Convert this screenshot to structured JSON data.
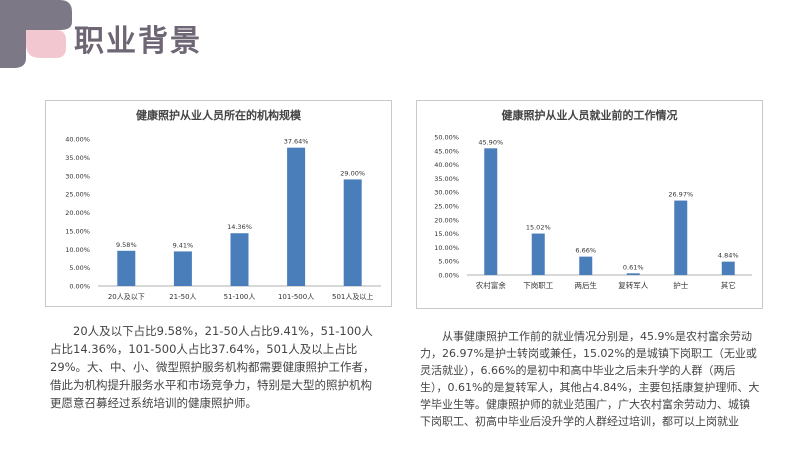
{
  "header": {
    "title": "职业背景"
  },
  "colors": {
    "bar": "#4a7ebb",
    "title": "#6e6675",
    "logo_dark": "#7d7885",
    "logo_light": "#f2c7d0"
  },
  "chart_data": [
    {
      "type": "bar",
      "title": "健康照护从业人员所在的机构规模",
      "categories": [
        "20人及以下",
        "21-50人",
        "51-100人",
        "101-500人",
        "501人及以上"
      ],
      "values": [
        9.58,
        9.41,
        14.36,
        37.64,
        29.0
      ],
      "value_labels": [
        "9.58%",
        "9.41%",
        "14.36%",
        "37.64%",
        "29.00%"
      ],
      "y_ticks": [
        "0.00%",
        "5.00%",
        "10.00%",
        "15.00%",
        "20.00%",
        "25.00%",
        "30.00%",
        "35.00%",
        "40.00%"
      ],
      "ylim": [
        0,
        40
      ],
      "grid": false
    },
    {
      "type": "bar",
      "title": "健康照护从业人员就业前的工作情况",
      "categories": [
        "农村富余",
        "下岗职工",
        "两后生",
        "复转军人",
        "护士",
        "其它"
      ],
      "values": [
        45.9,
        15.02,
        6.66,
        0.61,
        26.97,
        4.84
      ],
      "value_labels": [
        "45.90%",
        "15.02%",
        "6.66%",
        "0.61%",
        "26.97%",
        "4.84%"
      ],
      "y_ticks": [
        "0.00%",
        "5.00%",
        "10.00%",
        "15.00%",
        "20.00%",
        "25.00%",
        "30.00%",
        "35.00%",
        "40.00%",
        "45.00%",
        "50.00%"
      ],
      "ylim": [
        0,
        50
      ],
      "grid": false
    }
  ],
  "descriptions": {
    "left": "20人及以下占比9.58%，21-50人占比9.41%，51-100人占比14.36%，101-500人占比37.64%，501人及以上占比29%。大、中、小、微型照护服务机构都需要健康照护工作者，借此为机构提升服务水平和市场竞争力，特别是大型的照护机构更愿意召募经过系统培训的健康照护师。",
    "right": "从事健康照护工作前的就业情况分别是，45.9%是农村富余劳动力，26.97%是护士转岗或兼任，15.02%的是城镇下岗职工（无业或灵活就业），6.66%的是初中和高中毕业之后未升学的人群（两后生），0.61%的是复转军人，其他占4.84%，主要包括康复护理师、大学毕业生等。健康照护师的就业范围广，广大农村富余劳动力、城镇下岗职工、初高中毕业后没升学的人群经过培训，都可以上岗就业"
  }
}
